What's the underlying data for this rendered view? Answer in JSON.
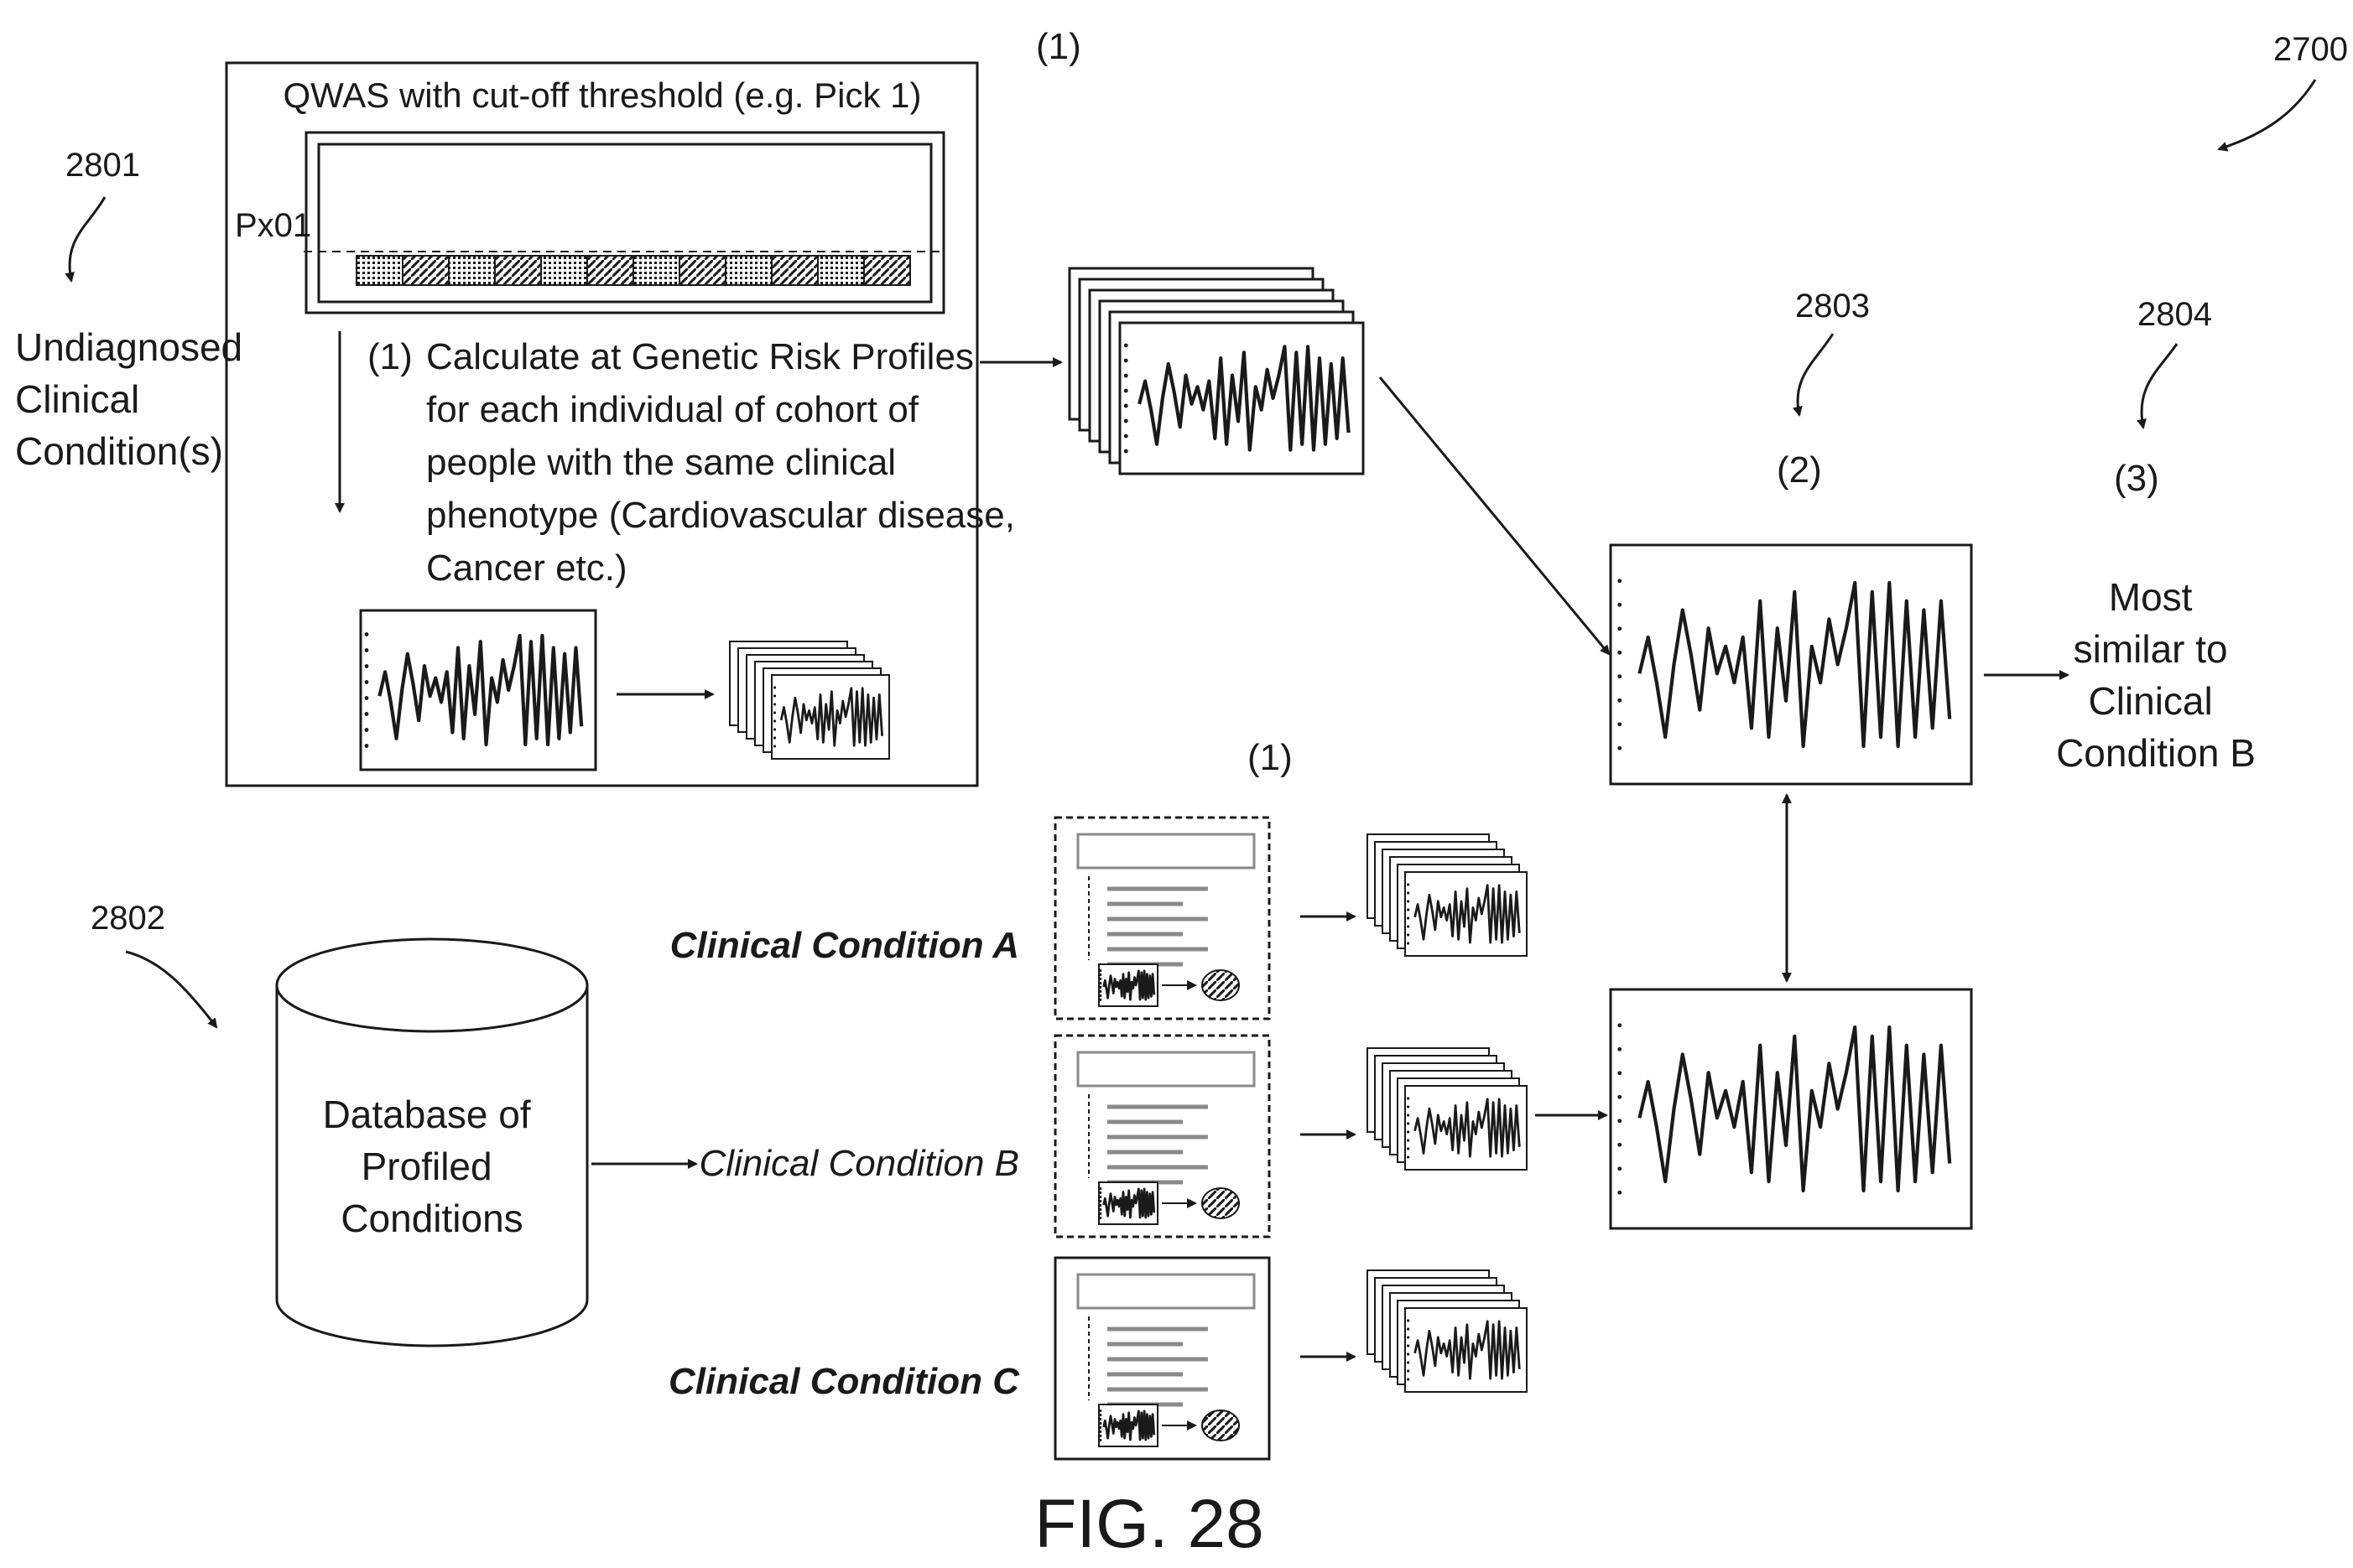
{
  "figure_label": "FIG. 28",
  "reference_numerals": {
    "figure": "2700",
    "undiagnosed": "2801",
    "database": "2802",
    "comparison": "2803",
    "result": "2804"
  },
  "left_label": [
    "Undiagnosed",
    "Clinical",
    "Condition(s)"
  ],
  "step_markers": {
    "top": "(1)",
    "top_inner": "(1)",
    "bottom": "(1)",
    "compare": "(2)",
    "result": "(3)"
  },
  "qwas": {
    "title": "QWAS with cut-off threshold (e.g. Pick 1)",
    "threshold_label": "Px01",
    "description": [
      "Calculate at Genetic Risk Profiles",
      "for each individual of cohort of",
      "people with the same clinical",
      "phenotype (Cardiovascular disease,",
      "Cancer etc.)"
    ]
  },
  "database": {
    "lines": [
      "Database of",
      "Profiled",
      "Conditions"
    ]
  },
  "conditions": [
    {
      "label": "Clinical Condition A"
    },
    {
      "label": "Clinical Condition B"
    },
    {
      "label": "Clinical Condition C"
    }
  ],
  "result_text": [
    "Most",
    "similar to",
    "Clinical",
    "Condition B"
  ],
  "colors": {
    "ink": "#1a1a1a",
    "background": "#ffffff",
    "dashed_panel": "#8a8a8a"
  }
}
